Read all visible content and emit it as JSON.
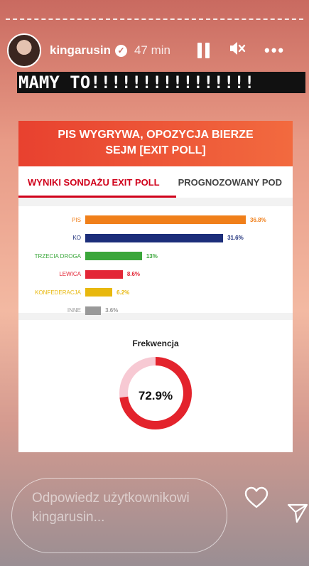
{
  "story": {
    "username": "kingarusin",
    "verified_mark": "✓",
    "time": "47 min",
    "banner_text": "MAMY TO!!!!!!!!!!!!!!!!",
    "reply_placeholder": "Odpowiedz użytkownikowi kingarusin...",
    "more_label": "•••"
  },
  "card": {
    "title_line1": "PIS WYGRYWA, OPOZYCJA BIERZE",
    "title_line2": "SEJM [EXIT POLL]",
    "tabs": [
      "WYNIKI SONDAŻU EXIT POLL",
      "PROGNOZOWANY POD"
    ],
    "turnout_title": "Frekwencja",
    "turnout_value": "72.9%"
  },
  "chart_data": {
    "type": "bar",
    "categories": [
      "PIS",
      "KO",
      "TRZECIA DROGA",
      "LEWICA",
      "KONFEDERACJA",
      "INNE"
    ],
    "values": [
      36.8,
      31.6,
      13,
      8.6,
      6.2,
      3.6
    ],
    "value_labels": [
      "36.8%",
      "31.6%",
      "13%",
      "8.6%",
      "6.2%",
      "3.6%"
    ],
    "colors": [
      "#f07f1a",
      "#1c2e7a",
      "#3aa63a",
      "#e32636",
      "#e8b80e",
      "#999999"
    ],
    "turnout": 72.9
  }
}
